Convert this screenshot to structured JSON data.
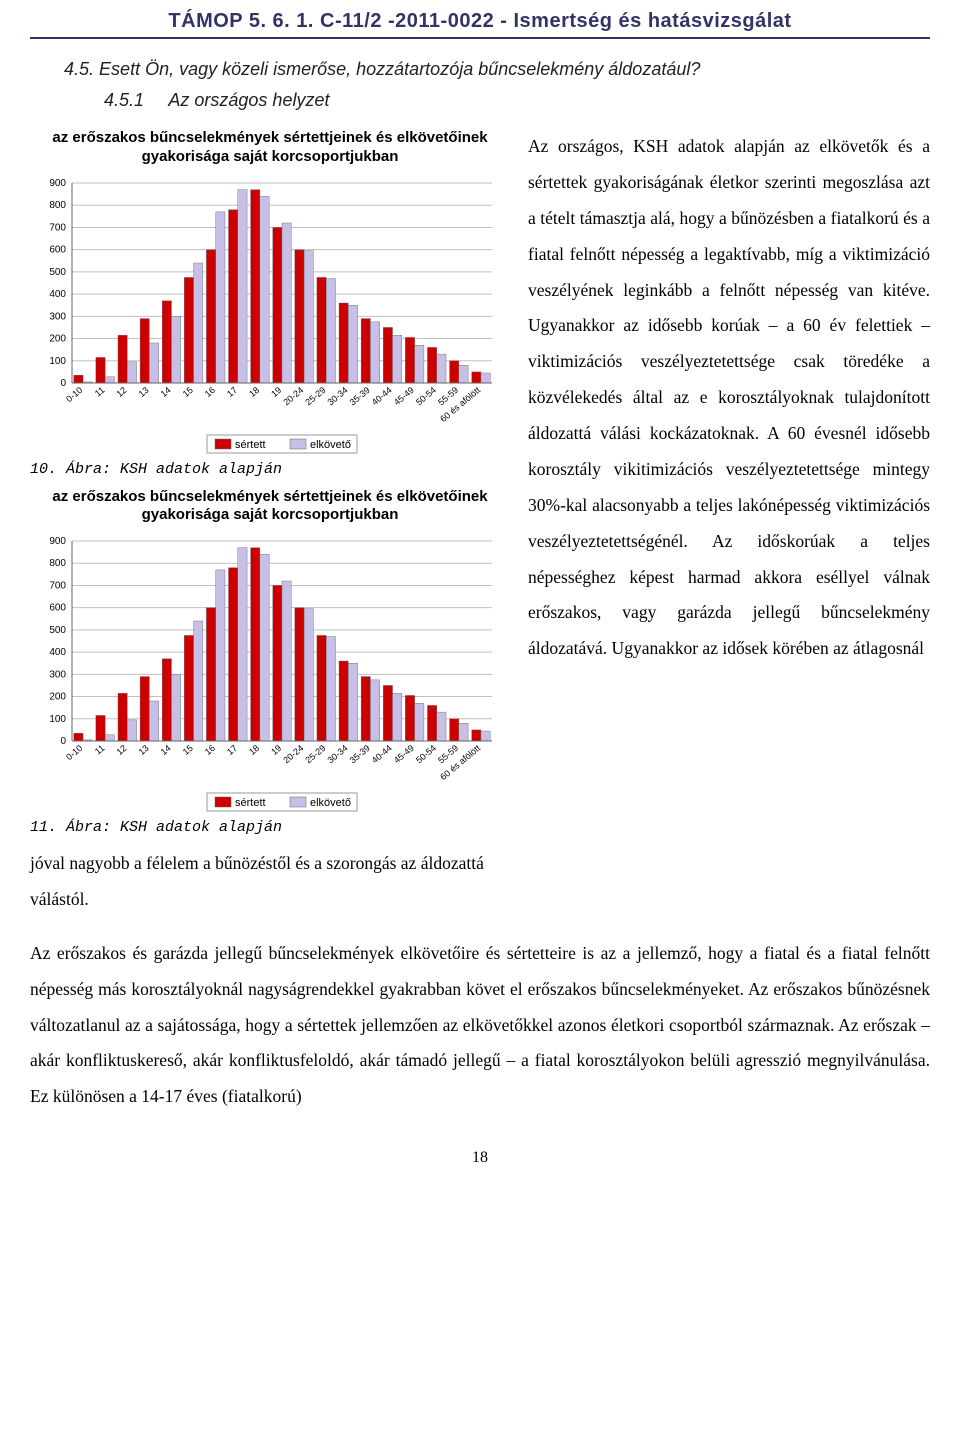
{
  "header": {
    "title": "TÁMOP 5. 6. 1. C-11/2 -2011-0022 - Ismertség és hatásvizsgálat",
    "border_color": "#333366",
    "font_color": "#333366",
    "font_family": "Comic Sans MS",
    "fontsize": 20
  },
  "section": {
    "number": "4.5.",
    "question": "Esett Ön, vagy közeli ismerőse, hozzátartozója bűncselekmény áldozatául?",
    "sub_number": "4.5.1",
    "sub_title": "Az országos helyzet"
  },
  "chart1": {
    "type": "bar",
    "title": "az erőszakos bűncselekmények sértettjeinek és elkövetőinek gyakorisága saját korcsoportjukban",
    "caption": "10. Ábra: KSH adatok alapján",
    "categories": [
      "0-10",
      "11",
      "12",
      "13",
      "14",
      "15",
      "16",
      "17",
      "18",
      "19",
      "20-24",
      "25-29",
      "30-34",
      "35-39",
      "40-44",
      "45-49",
      "50-54",
      "55-59",
      "60 és afölött"
    ],
    "series": [
      {
        "name": "sértett",
        "color": "#cc0000",
        "values": [
          35,
          115,
          215,
          290,
          370,
          475,
          600,
          780,
          870,
          700,
          600,
          475,
          360,
          290,
          250,
          205,
          160,
          100,
          50
        ]
      },
      {
        "name": "elkövető",
        "color": "#c8bfe7",
        "values": [
          5,
          28,
          95,
          180,
          300,
          540,
          770,
          870,
          840,
          720,
          595,
          470,
          350,
          275,
          215,
          170,
          130,
          80,
          45
        ]
      }
    ],
    "ylim": [
      0,
      900
    ],
    "ytick_step": 100,
    "yticks": [
      0,
      100,
      200,
      300,
      400,
      500,
      600,
      700,
      800,
      900
    ],
    "label_fontsize": 9,
    "axis_fontsize": 10,
    "background_color": "#ffffff",
    "grid_color": "#c0c0c0",
    "bar_width": 0.42,
    "legend": {
      "position": "bottom",
      "items": [
        "sértett",
        "elkövető"
      ]
    }
  },
  "chart2": {
    "type": "bar",
    "title": "az erőszakos bűncselekmények sértettjeinek és elkövetőinek gyakorisága saját korcsoportjukban",
    "caption": "11. Ábra: KSH adatok alapján",
    "categories": [
      "0-10",
      "11",
      "12",
      "13",
      "14",
      "15",
      "16",
      "17",
      "18",
      "19",
      "20-24",
      "25-29",
      "30-34",
      "35-39",
      "40-44",
      "45-49",
      "50-54",
      "55-59",
      "60 és afölött"
    ],
    "series": [
      {
        "name": "sértett",
        "color": "#cc0000",
        "values": [
          35,
          115,
          215,
          290,
          370,
          475,
          600,
          780,
          870,
          700,
          600,
          475,
          360,
          290,
          250,
          205,
          160,
          100,
          50
        ]
      },
      {
        "name": "elkövető",
        "color": "#c8bfe7",
        "values": [
          5,
          28,
          95,
          180,
          300,
          540,
          770,
          870,
          840,
          720,
          595,
          470,
          350,
          275,
          215,
          170,
          130,
          80,
          45
        ]
      }
    ],
    "ylim": [
      0,
      900
    ],
    "ytick_step": 100,
    "yticks": [
      0,
      100,
      200,
      300,
      400,
      500,
      600,
      700,
      800,
      900
    ],
    "label_fontsize": 9,
    "axis_fontsize": 10,
    "background_color": "#ffffff",
    "grid_color": "#c0c0c0",
    "bar_width": 0.42,
    "legend": {
      "position": "bottom",
      "items": [
        "sértett",
        "elkövető"
      ]
    }
  },
  "body_text": {
    "right_column": "Az országos, KSH adatok alapján az elkövetők és a sértettek gyakoriságának életkor szerinti megoszlása azt a tételt támasztja alá, hogy a bűnözésben a fiatalkorú és a fiatal felnőtt népesség a legaktívabb, míg a viktimizáció veszélyének leginkább a felnőtt népesség van kitéve. Ugyanakkor az idősebb korúak – a 60 év felettiek – viktimizációs veszélyeztetettsége csak töredéke a közvélekedés által az e korosztályoknak tulajdonított áldozattá válási kockázatoknak. A 60 évesnél idősebb korosztály vikitimizációs veszélyeztetettsége mintegy 30%-kal alacsonyabb a teljes lakónépesség viktimizációs veszélyeztetettségénél. Az időskorúak a teljes népességhez képest harmad akkora eséllyel válnak erőszakos, vagy garázda jellegű bűncselekmény áldozatává. Ugyanakkor az idősek körében az átlagosnál",
    "after_charts_line": "jóval nagyobb a félelem a bűnözéstől és a szorongás az áldozattá válástól.",
    "bottom_para": "Az erőszakos és garázda jellegű bűncselekmények elkövetőire és sértetteire is az a jellemző, hogy a fiatal és a fiatal felnőtt népesség más korosztályoknál nagyságrendekkel gyakrabban követ el erőszakos bűncselekményeket. Az erőszakos bűnözésnek változatlanul az a sajátossága, hogy a sértettek jellemzően az elkövetőkkel azonos életkori csoportból származnak. Az erőszak – akár konfliktuskereső, akár konfliktusfeloldó, akár támadó jellegű – a fiatal korosztályokon belüli agresszió megnyilvánulása. Ez különösen a  14-17 éves (fiatalkorú)"
  },
  "page_number": "18"
}
